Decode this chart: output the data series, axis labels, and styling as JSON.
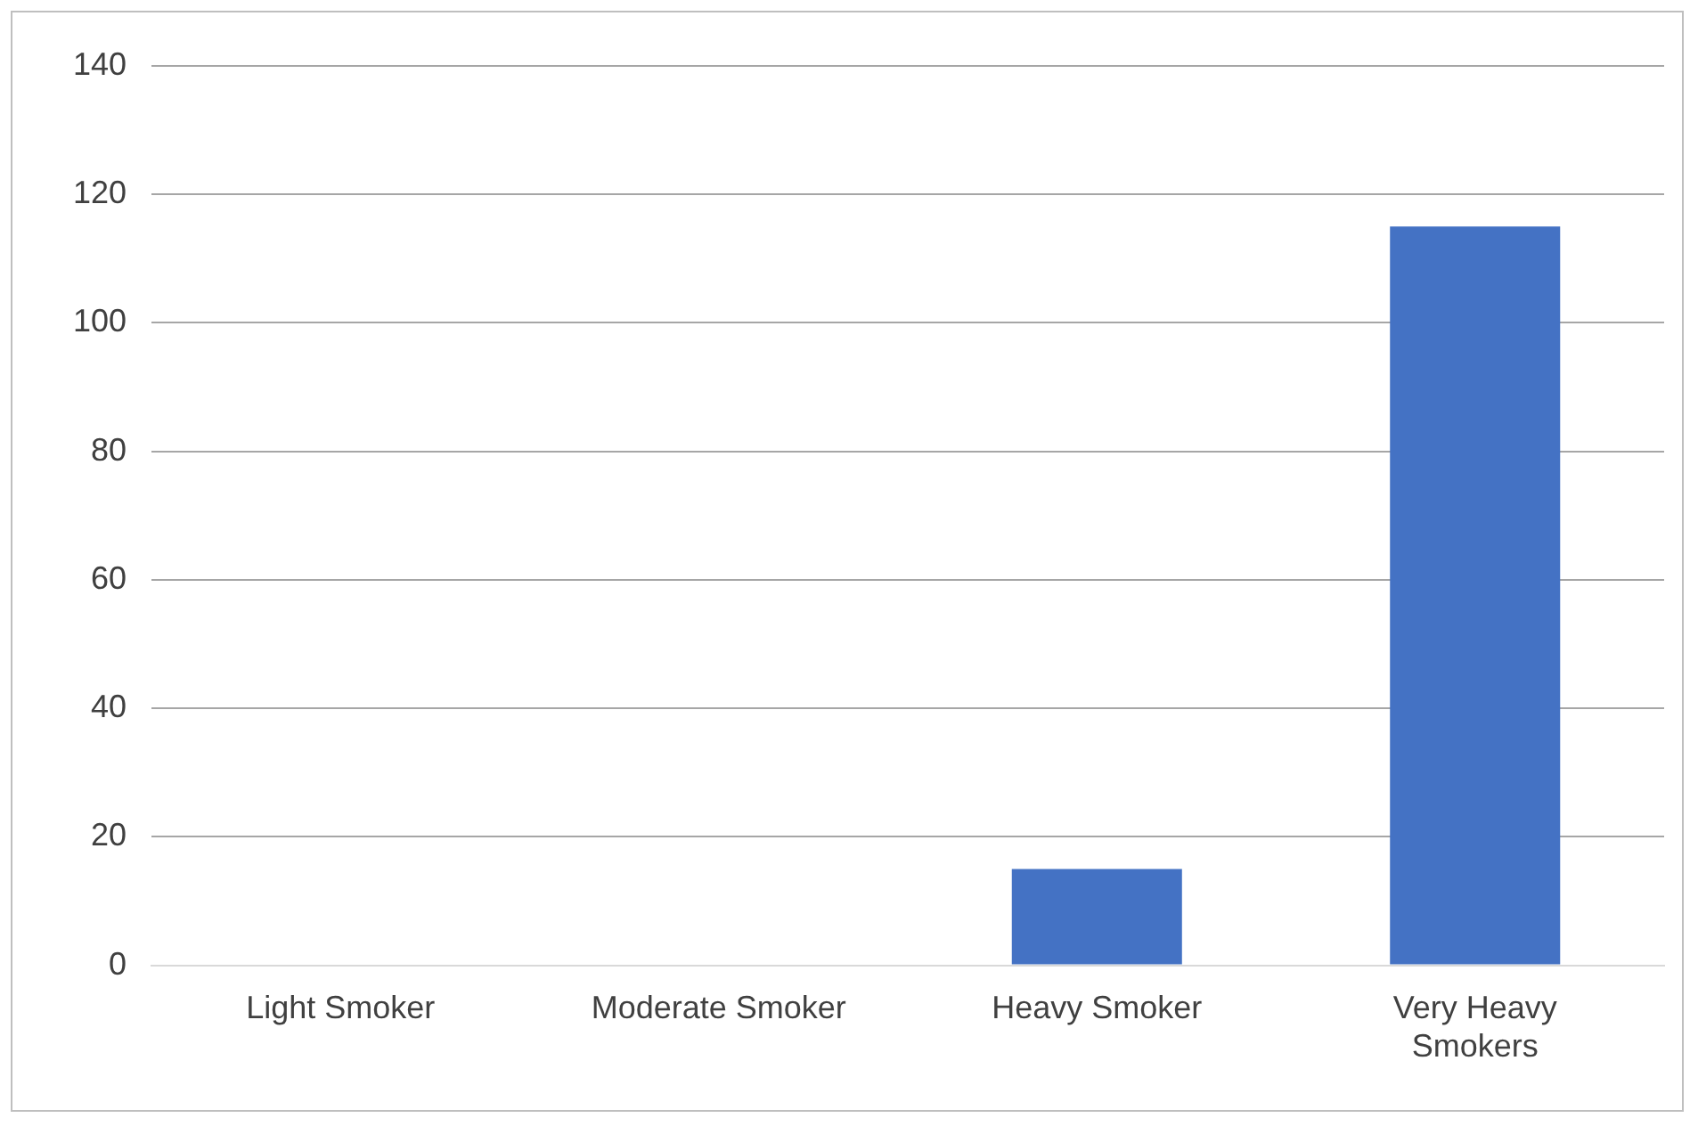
{
  "chart_data": {
    "type": "bar",
    "categories": [
      "Light Smoker",
      "Moderate Smoker",
      "Heavy Smoker",
      "Very Heavy Smokers"
    ],
    "values": [
      0,
      0,
      15,
      115
    ],
    "color": "#4472c4",
    "ylim": [
      0,
      140
    ],
    "yticks": [
      0,
      20,
      40,
      60,
      80,
      100,
      120,
      140
    ],
    "grid": "y",
    "legend": false
  }
}
